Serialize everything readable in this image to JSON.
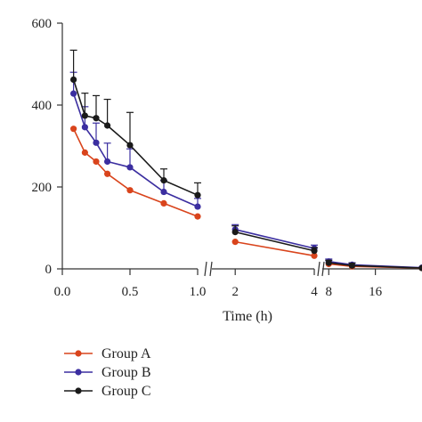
{
  "chart_data": {
    "type": "line",
    "xlabel": "Time (h)",
    "ylabel": "",
    "ylim": [
      0,
      600
    ],
    "yticks": [
      0,
      200,
      400,
      600
    ],
    "x_axis_segments": [
      {
        "range": [
          0.0,
          1.0
        ],
        "ticks": [
          0.0,
          0.5,
          1.0
        ],
        "tick_labels": [
          "0.0",
          "0.5",
          "1.0"
        ]
      },
      {
        "range": [
          1.5,
          4.0
        ],
        "ticks": [
          2,
          4
        ],
        "tick_labels": [
          "2",
          "4"
        ]
      },
      {
        "range": [
          7.5,
          24.0
        ],
        "ticks": [
          8,
          16
        ],
        "tick_labels": [
          "8",
          "16"
        ]
      }
    ],
    "x": [
      0.083,
      0.167,
      0.25,
      0.333,
      0.5,
      0.75,
      1.0,
      2,
      4,
      8,
      12,
      24
    ],
    "series": [
      {
        "name": "Group A",
        "color": "#d9441c",
        "values": [
          342,
          284,
          262,
          232,
          192,
          160,
          128,
          66,
          32,
          12,
          6,
          2
        ],
        "errors": [
          0,
          0,
          0,
          0,
          0,
          0,
          0,
          0,
          0,
          0,
          0,
          0
        ]
      },
      {
        "name": "Group B",
        "color": "#3b2ea0",
        "values": [
          428,
          346,
          308,
          262,
          248,
          188,
          152,
          96,
          50,
          18,
          10,
          3
        ],
        "errors": [
          52,
          50,
          48,
          45,
          45,
          28,
          20,
          12,
          8,
          6,
          5,
          1
        ]
      },
      {
        "name": "Group C",
        "color": "#1a1a1a",
        "values": [
          462,
          374,
          368,
          350,
          302,
          216,
          180,
          90,
          44,
          15,
          8,
          2
        ],
        "errors": [
          72,
          55,
          55,
          64,
          80,
          28,
          30,
          15,
          8,
          6,
          6,
          1
        ]
      }
    ],
    "legend_position": "bottom-left",
    "grid": false
  }
}
